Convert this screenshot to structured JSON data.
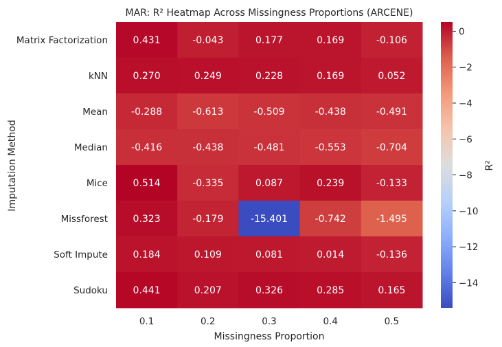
{
  "chart_data": {
    "type": "heatmap",
    "title": "MAR: R² Heatmap Across Missingness Proportions (ARCENE)",
    "xlabel": "Missingness Proportion",
    "ylabel": "Imputation Method",
    "x_categories": [
      "0.1",
      "0.2",
      "0.3",
      "0.4",
      "0.5"
    ],
    "y_categories": [
      "Matrix Factorization",
      "kNN",
      "Mean",
      "Median",
      "Mice",
      "Missforest",
      "Soft Impute",
      "Sudoku"
    ],
    "values": [
      [
        0.431,
        -0.043,
        0.177,
        0.169,
        -0.106
      ],
      [
        0.27,
        0.249,
        0.228,
        0.169,
        0.052
      ],
      [
        -0.288,
        -0.613,
        -0.509,
        -0.438,
        -0.491
      ],
      [
        -0.416,
        -0.438,
        -0.481,
        -0.553,
        -0.704
      ],
      [
        0.514,
        -0.335,
        0.087,
        0.239,
        -0.133
      ],
      [
        0.323,
        -0.179,
        -15.401,
        -0.742,
        -1.495
      ],
      [
        0.184,
        0.109,
        0.081,
        0.014,
        -0.136
      ],
      [
        0.441,
        0.207,
        0.326,
        0.285,
        0.165
      ]
    ],
    "value_format": "3 decimals",
    "colormap": "coolwarm",
    "color_range": [
      -15.401,
      0.514
    ],
    "colorbar": {
      "label": "R²",
      "ticks": [
        0,
        -2,
        -4,
        -6,
        -8,
        -10,
        -12,
        -14
      ],
      "tick_labels": [
        "0",
        "−2",
        "−4",
        "−6",
        "−8",
        "−10",
        "−12",
        "−14"
      ]
    },
    "grid": false
  }
}
